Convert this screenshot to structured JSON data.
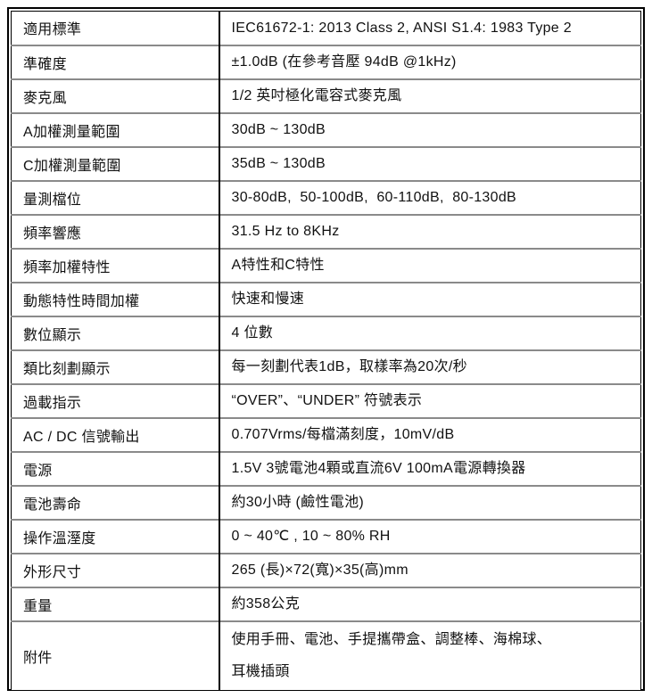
{
  "table": {
    "rows": [
      {
        "label": "適用標準",
        "value": "IEC61672-1: 2013 Class 2, ANSI S1.4: 1983 Type 2"
      },
      {
        "label": "準確度",
        "value": "±1.0dB (在參考音壓 94dB @1kHz)"
      },
      {
        "label": "麥克風",
        "value": "1/2 英吋極化電容式麥克風"
      },
      {
        "label": "A加權測量範圍",
        "value": "30dB ~ 130dB"
      },
      {
        "label": "C加權測量範圍",
        "value": "35dB ~ 130dB"
      },
      {
        "label": "量測檔位",
        "value": "30-80dB,  50-100dB,  60-110dB,  80-130dB"
      },
      {
        "label": "頻率響應",
        "value": "31.5 Hz to 8KHz"
      },
      {
        "label": "頻率加權特性",
        "value": "A特性和C特性"
      },
      {
        "label": "動態特性時間加權",
        "value": "快速和慢速"
      },
      {
        "label": "數位顯示",
        "value": "4 位數"
      },
      {
        "label": "類比刻劃顯示",
        "value": "每一刻劃代表1dB，取樣率為20次/秒"
      },
      {
        "label": "過載指示",
        "value": "“OVER”、“UNDER” 符號表示"
      },
      {
        "label": "AC / DC 信號輸出",
        "value": "0.707Vrms/每檔滿刻度，10mV/dB"
      },
      {
        "label": "電源",
        "value": "1.5V 3號電池4顆或直流6V 100mA電源轉換器"
      },
      {
        "label": "電池壽命",
        "value": "約30小時 (鹼性電池)"
      },
      {
        "label": "操作溫溼度",
        "value": "0 ~ 40℃ , 10 ~ 80% RH"
      },
      {
        "label": "外形尺寸",
        "value": "265 (長)×72(寬)×35(高)mm"
      },
      {
        "label": "重量",
        "value": "約358公克"
      },
      {
        "label": "附件",
        "value": "使用手冊、電池、手提攜帶盒、調整棒、海棉球、\n耳機插頭",
        "tall": true
      }
    ]
  }
}
